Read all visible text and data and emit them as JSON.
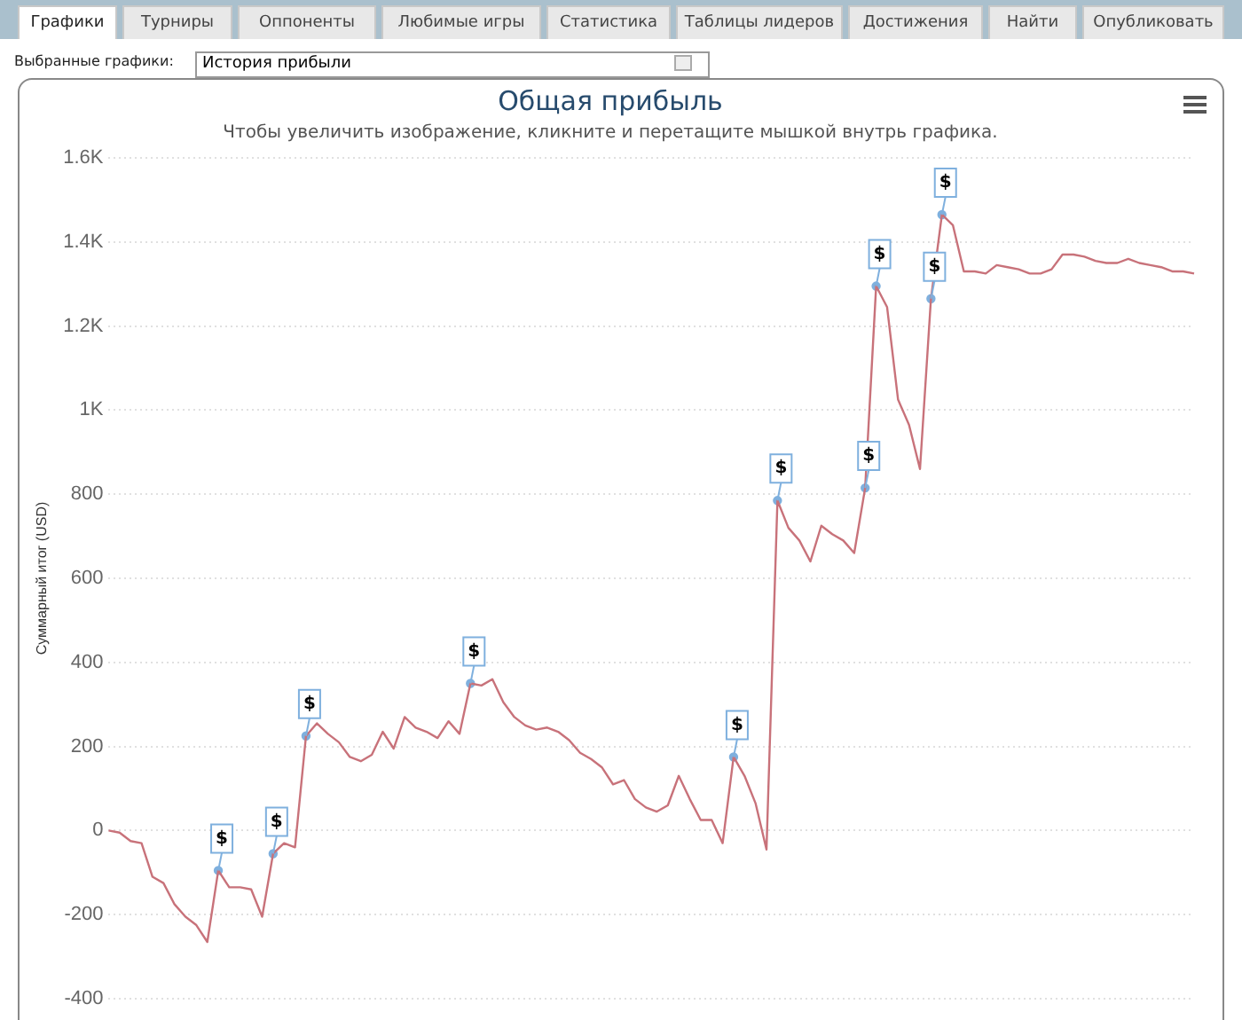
{
  "chart_data": {
    "type": "line",
    "title": "Общая прибыль",
    "subtitle": "Чтобы увеличить изображение, кликните и перетащите мышкой внутрь графика.",
    "ylabel": "Суммарный итог (USD)",
    "annotations": [
      "Графики",
      "Турниры",
      "Оппоненты",
      "Любимые игры",
      "Статистика",
      "Таблицы лидеров",
      "Достижения",
      "Найти",
      "Опубликовать",
      "Выбранные графики:",
      "История прибыли"
    ],
    "categories": [
      null,
      null,
      null,
      null,
      null,
      null,
      null,
      null,
      null,
      null,
      null,
      null,
      null,
      null,
      null,
      null,
      null,
      null,
      null,
      null,
      null,
      null,
      null,
      null,
      null,
      null,
      null,
      null,
      null,
      null,
      null,
      null,
      null,
      null,
      null,
      null,
      null,
      null,
      null,
      null,
      null,
      null,
      null,
      null,
      null,
      null,
      null,
      null,
      null,
      null,
      null,
      null,
      null,
      null,
      null,
      null,
      null,
      null,
      null,
      null,
      null,
      null,
      null,
      null,
      null,
      null,
      null,
      null,
      null,
      null,
      null,
      null,
      null,
      null,
      null,
      null,
      null,
      null,
      null,
      null,
      null,
      null,
      null,
      null,
      null,
      null,
      null,
      null,
      null,
      null,
      null,
      null,
      null,
      null,
      null,
      null,
      null,
      null,
      null,
      null
    ],
    "series": [
      {
        "color": "#c8727a",
        "marker": "none",
        "values": [
          0,
          -5,
          -25,
          -30,
          -110,
          -125,
          -175,
          -205,
          -225,
          -265,
          -95,
          -135,
          -135,
          -140,
          -205,
          -55,
          -30,
          -40,
          225,
          255,
          230,
          210,
          175,
          165,
          180,
          235,
          195,
          270,
          245,
          235,
          220,
          260,
          230,
          350,
          345,
          360,
          305,
          270,
          250,
          240,
          245,
          235,
          215,
          185,
          170,
          150,
          110,
          120,
          75,
          55,
          45,
          60,
          130,
          75,
          25,
          25,
          -30,
          175,
          130,
          65,
          -45,
          785,
          720,
          690,
          640,
          725,
          705,
          690,
          660,
          815,
          1295,
          1245,
          1025,
          965,
          860,
          1265,
          1465,
          1440,
          1330,
          1330,
          1325,
          1345,
          1340,
          1335,
          1325,
          1325,
          1335,
          1370,
          1370,
          1365,
          1355,
          1350,
          1350,
          1360,
          1350,
          1345,
          1340,
          1330,
          1330,
          1325
        ]
      },
      {
        "type": "scatter",
        "color": "#7fb0de",
        "marker": "circle",
        "values": [
          null,
          null,
          null,
          null,
          null,
          null,
          null,
          null,
          null,
          null,
          -95,
          null,
          null,
          null,
          null,
          -55,
          null,
          null,
          225,
          null,
          null,
          null,
          null,
          null,
          null,
          null,
          null,
          null,
          null,
          null,
          null,
          null,
          null,
          350,
          null,
          null,
          null,
          null,
          null,
          null,
          null,
          null,
          null,
          null,
          null,
          null,
          null,
          null,
          null,
          null,
          null,
          null,
          null,
          null,
          null,
          null,
          null,
          175,
          null,
          null,
          null,
          785,
          null,
          null,
          null,
          null,
          null,
          null,
          null,
          815,
          1295,
          null,
          null,
          null,
          null,
          1265,
          1465,
          null,
          null,
          null,
          null,
          null,
          null,
          null,
          null,
          null,
          null,
          null,
          null,
          null,
          null,
          null,
          null,
          null,
          null,
          null,
          null,
          null,
          null,
          null
        ],
        "value_labels": [
          null,
          null,
          null,
          null,
          null,
          null,
          null,
          null,
          null,
          null,
          "$",
          null,
          null,
          null,
          null,
          "$",
          null,
          null,
          "$",
          null,
          null,
          null,
          null,
          null,
          null,
          null,
          null,
          null,
          null,
          null,
          null,
          null,
          null,
          "$",
          null,
          null,
          null,
          null,
          null,
          null,
          null,
          null,
          null,
          null,
          null,
          null,
          null,
          null,
          null,
          null,
          null,
          null,
          null,
          null,
          null,
          null,
          null,
          "$",
          null,
          null,
          null,
          "$",
          null,
          null,
          null,
          null,
          null,
          null,
          null,
          "$",
          "$",
          null,
          null,
          null,
          null,
          "$",
          "$",
          null,
          null,
          null,
          null,
          null,
          null,
          null,
          null,
          null,
          null,
          null,
          null,
          null,
          null,
          null,
          null,
          null,
          null,
          null,
          null,
          null,
          null,
          null
        ]
      }
    ],
    "ylim": [
      -400,
      1600
    ],
    "yticks": [
      -400,
      -200,
      0,
      200,
      400,
      600,
      800,
      {
        "value": 1000,
        "label": "1K"
      },
      {
        "value": 1200,
        "label": "1.2K"
      },
      {
        "value": 1400,
        "label": "1.4K"
      },
      {
        "value": 1600,
        "label": "1.6K"
      }
    ],
    "grid": "y",
    "legend": false,
    "tick_labels": "y"
  }
}
